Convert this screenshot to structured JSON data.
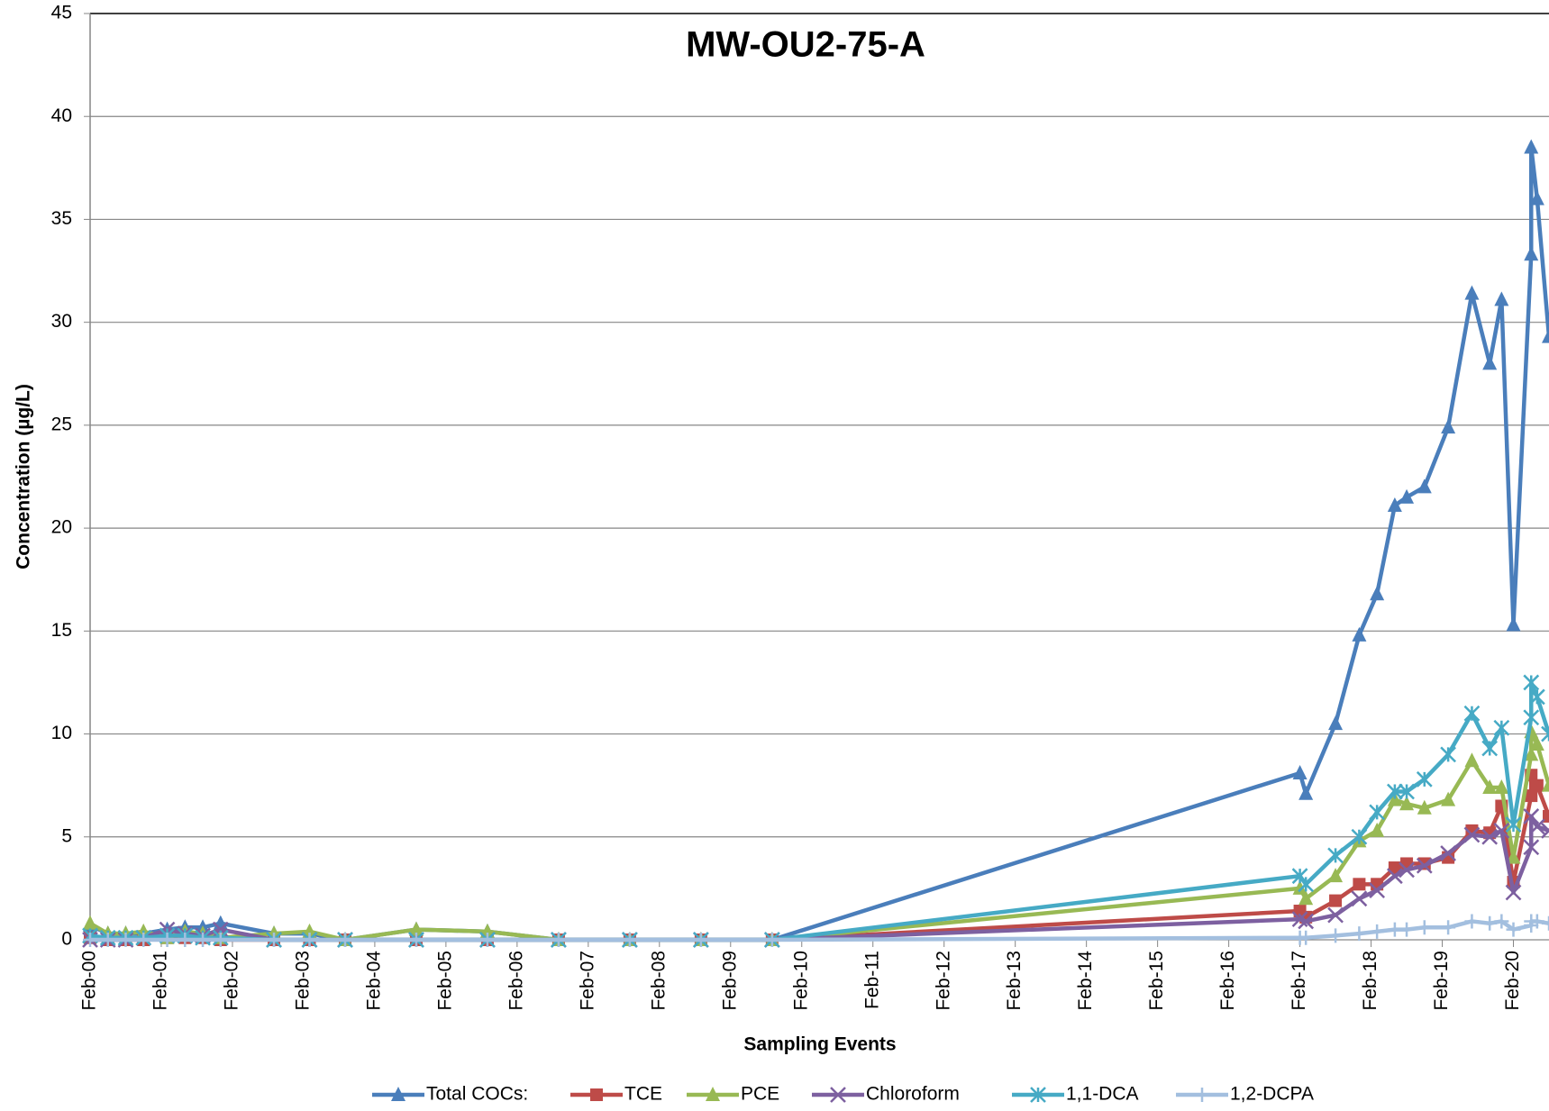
{
  "chart_data": {
    "type": "line",
    "title": "MW-OU2-75-A",
    "x_label": "Sampling Events",
    "y_label": "Concentration (µg/L)",
    "x": [
      "2000-02",
      "2000-05",
      "2000-08",
      "2000-11",
      "2001-03",
      "2001-06",
      "2001-09",
      "2001-12",
      "2002-09",
      "2003-03",
      "2003-09",
      "2004-09",
      "2005-09",
      "2006-09",
      "2007-09",
      "2008-09",
      "2009-09",
      "2017-02",
      "2017-03",
      "2017-08",
      "2017-12",
      "2018-03",
      "2018-06",
      "2018-08",
      "2018-11",
      "2019-03",
      "2019-07",
      "2019-10",
      "2019-12",
      "2020-02",
      "2020-05",
      "2020-05",
      "2020-06",
      "2020-08"
    ],
    "series": [
      {
        "name": "Total COCs:",
        "color": "#4a7ebb",
        "marker": "triangle",
        "values": [
          0.7,
          0.3,
          0.3,
          0.3,
          0.5,
          0.6,
          0.6,
          0.8,
          0.3,
          0.3,
          0,
          0.5,
          0.4,
          0,
          0,
          0,
          0,
          8.1,
          7.1,
          10.5,
          14.8,
          16.8,
          21.1,
          21.5,
          22.0,
          24.9,
          31.4,
          28.0,
          31.1,
          15.3,
          33.3,
          38.5,
          36.0,
          29.3
        ]
      },
      {
        "name": "TCE",
        "color": "#be4b48",
        "marker": "square",
        "values": [
          0.1,
          0,
          0,
          0,
          0.1,
          0.1,
          0.1,
          0,
          0,
          0,
          0,
          0,
          0,
          0,
          0,
          0,
          0,
          1.4,
          1.1,
          1.9,
          2.7,
          2.7,
          3.5,
          3.7,
          3.7,
          4.0,
          5.3,
          5.2,
          6.5,
          2.8,
          7.0,
          8.0,
          7.5,
          6.0
        ]
      },
      {
        "name": "PCE",
        "color": "#98b954",
        "marker": "triangle",
        "values": [
          0.8,
          0.3,
          0.3,
          0.4,
          0.1,
          0.4,
          0.3,
          0.1,
          0.3,
          0.4,
          0,
          0.5,
          0.4,
          0,
          0,
          0,
          0,
          2.5,
          2.0,
          3.1,
          4.8,
          5.3,
          6.8,
          6.6,
          6.4,
          6.8,
          8.7,
          7.4,
          7.4,
          4.0,
          9.0,
          10.1,
          9.5,
          7.5
        ]
      },
      {
        "name": "Chloroform",
        "color": "#7d60a0",
        "marker": "x",
        "values": [
          0,
          0,
          0,
          0.1,
          0.5,
          0.3,
          0.2,
          0.5,
          0,
          0,
          0,
          0,
          0,
          0,
          0,
          0,
          0,
          1.0,
          0.9,
          1.2,
          2.0,
          2.4,
          3.1,
          3.4,
          3.6,
          4.2,
          5.1,
          5.0,
          5.3,
          2.3,
          4.5,
          6.0,
          5.5,
          5.3
        ]
      },
      {
        "name": "1,1-DCA",
        "color": "#46aac5",
        "marker": "star",
        "values": [
          0.2,
          0.1,
          0.1,
          0.1,
          0.2,
          0.2,
          0.1,
          0.1,
          0,
          0,
          0,
          0,
          0,
          0,
          0,
          0,
          0,
          3.1,
          2.7,
          4.1,
          5.0,
          6.2,
          7.2,
          7.2,
          7.8,
          9.0,
          11.0,
          9.3,
          10.3,
          5.6,
          10.8,
          12.5,
          11.8,
          10.0
        ]
      },
      {
        "name": "1,2-DCPA",
        "color": "#a3bfdf",
        "marker": "plus",
        "values": [
          0,
          0,
          0,
          0,
          0,
          0,
          0,
          0,
          0,
          0,
          0,
          0,
          0,
          0,
          0,
          0,
          0,
          0.1,
          0.1,
          0.2,
          0.3,
          0.4,
          0.5,
          0.5,
          0.6,
          0.6,
          0.9,
          0.8,
          0.9,
          0.5,
          0.7,
          0.9,
          0.9,
          0.8
        ]
      }
    ],
    "xlim": [
      "2000-02",
      "2020-08"
    ],
    "xticks": [
      {
        "value": "2000-02",
        "label": "Feb-00"
      },
      {
        "value": "2001-02",
        "label": "Feb-01"
      },
      {
        "value": "2002-02",
        "label": "Feb-02"
      },
      {
        "value": "2003-02",
        "label": "Feb-03"
      },
      {
        "value": "2004-02",
        "label": "Feb-04"
      },
      {
        "value": "2005-02",
        "label": "Feb-05"
      },
      {
        "value": "2006-02",
        "label": "Feb-06"
      },
      {
        "value": "2007-02",
        "label": "Feb-07"
      },
      {
        "value": "2008-02",
        "label": "Feb-08"
      },
      {
        "value": "2009-02",
        "label": "Feb-09"
      },
      {
        "value": "2010-02",
        "label": "Feb-10"
      },
      {
        "value": "2011-02",
        "label": "Feb-11"
      },
      {
        "value": "2012-02",
        "label": "Feb-12"
      },
      {
        "value": "2013-02",
        "label": "Feb-13"
      },
      {
        "value": "2014-02",
        "label": "Feb-14"
      },
      {
        "value": "2015-02",
        "label": "Feb-15"
      },
      {
        "value": "2016-02",
        "label": "Feb-16"
      },
      {
        "value": "2017-02",
        "label": "Feb-17"
      },
      {
        "value": "2018-02",
        "label": "Feb-18"
      },
      {
        "value": "2019-02",
        "label": "Feb-19"
      },
      {
        "value": "2020-02",
        "label": "Feb-20"
      }
    ],
    "ylim": [
      0,
      45
    ],
    "yticks": [
      0,
      5,
      10,
      15,
      20,
      25,
      30,
      35,
      40,
      45
    ],
    "grid": true,
    "legend": "bottom"
  }
}
